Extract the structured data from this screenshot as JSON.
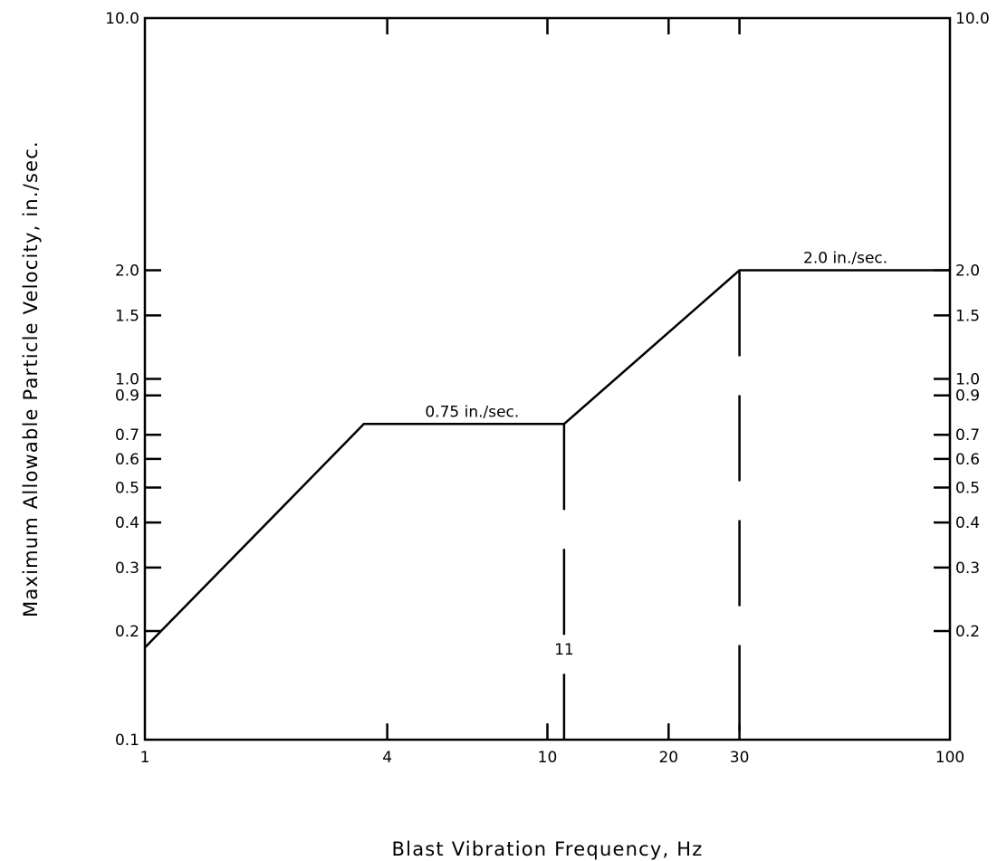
{
  "chart_data": {
    "type": "line",
    "x_scale": "log",
    "y_scale": "log",
    "xlim": [
      1,
      100
    ],
    "ylim": [
      0.1,
      10.0
    ],
    "xlabel": "Blast Vibration Frequency, Hz",
    "ylabel": "Maximum Allowable Particle Velocity, in./sec.",
    "x_ticks": [
      {
        "value": 1,
        "label": "1"
      },
      {
        "value": 4,
        "label": "4"
      },
      {
        "value": 10,
        "label": "10"
      },
      {
        "value": 20,
        "label": "20"
      },
      {
        "value": 30,
        "label": "30"
      },
      {
        "value": 100,
        "label": "100"
      }
    ],
    "y_ticks": [
      {
        "value": 0.1,
        "label": "0.1"
      },
      {
        "value": 0.2,
        "label": "0.2"
      },
      {
        "value": 0.3,
        "label": "0.3"
      },
      {
        "value": 0.4,
        "label": "0.4"
      },
      {
        "value": 0.5,
        "label": "0.5"
      },
      {
        "value": 0.6,
        "label": "0.6"
      },
      {
        "value": 0.7,
        "label": "0.7"
      },
      {
        "value": 0.9,
        "label": "0.9"
      },
      {
        "value": 1.0,
        "label": "1.0"
      },
      {
        "value": 1.5,
        "label": "1.5"
      },
      {
        "value": 2.0,
        "label": "2.0"
      },
      {
        "value": 10.0,
        "label": "10.0"
      }
    ],
    "right_y_ticks": [
      {
        "value": 0.2,
        "label": "0.2"
      },
      {
        "value": 0.3,
        "label": "0.3"
      },
      {
        "value": 0.4,
        "label": "0.4"
      },
      {
        "value": 0.5,
        "label": "0.5"
      },
      {
        "value": 0.6,
        "label": "0.6"
      },
      {
        "value": 0.7,
        "label": "0.7"
      },
      {
        "value": 0.9,
        "label": "0.9"
      },
      {
        "value": 1.0,
        "label": "1.0"
      },
      {
        "value": 1.5,
        "label": "1.5"
      },
      {
        "value": 2.0,
        "label": "2.0"
      },
      {
        "value": 10.0,
        "label": "10.0"
      }
    ],
    "top_x_ticks": [
      4,
      10,
      20,
      30
    ],
    "grid": false,
    "series": [
      {
        "x": [
          1,
          3.5,
          11,
          30,
          100
        ],
        "y": [
          0.18,
          0.75,
          0.75,
          2.0,
          2.0
        ]
      }
    ],
    "reference_lines": [
      {
        "x": 11,
        "y_top": 0.75,
        "label": "11"
      },
      {
        "x": 30,
        "y_top": 2.0
      }
    ],
    "annotations": [
      {
        "text": "0.75 in./sec.",
        "x": 6.5,
        "y": 0.75
      },
      {
        "text": "2.0 in./sec.",
        "x": 55,
        "y": 2.0
      }
    ]
  }
}
